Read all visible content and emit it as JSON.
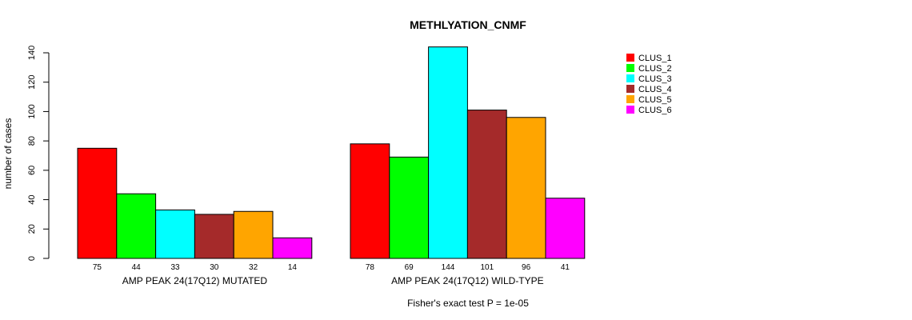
{
  "chart_data": {
    "type": "bar",
    "title": "METHLYATION_CNMF",
    "ylabel": "number of cases",
    "ylim": [
      0,
      140
    ],
    "yticks": [
      0,
      20,
      40,
      60,
      80,
      100,
      120,
      140
    ],
    "footnote": "Fisher's exact test P = 1e-05",
    "legend_position": "top-right",
    "series": [
      {
        "name": "CLUS_1",
        "color": "#FF0000"
      },
      {
        "name": "CLUS_2",
        "color": "#00FF00"
      },
      {
        "name": "CLUS_3",
        "color": "#00FFFF"
      },
      {
        "name": "CLUS_4",
        "color": "#A52A2A"
      },
      {
        "name": "CLUS_5",
        "color": "#FFA500"
      },
      {
        "name": "CLUS_6",
        "color": "#FF00FF"
      }
    ],
    "groups": [
      {
        "label": "AMP PEAK 24(17Q12) MUTATED",
        "values": [
          75,
          44,
          33,
          30,
          32,
          14
        ]
      },
      {
        "label": "AMP PEAK 24(17Q12) WILD-TYPE",
        "values": [
          78,
          69,
          144,
          101,
          96,
          41
        ]
      }
    ]
  }
}
